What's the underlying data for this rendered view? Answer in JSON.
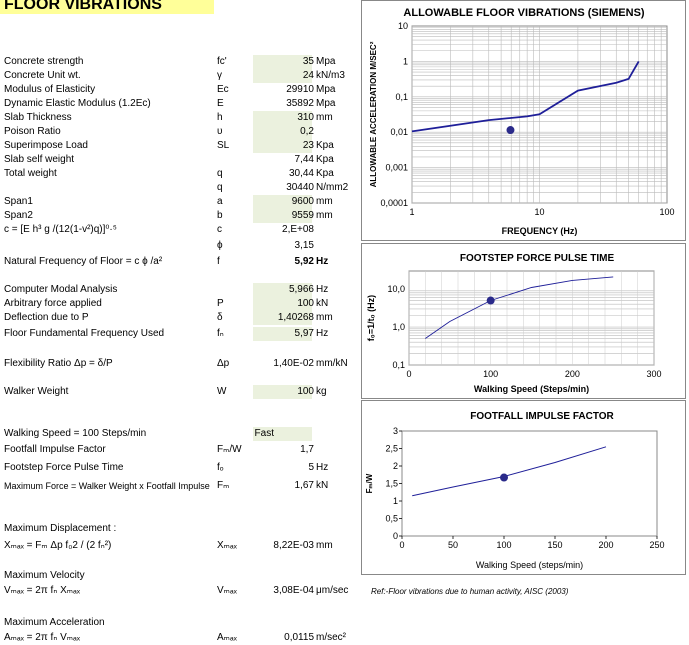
{
  "sheet_title": "FLOOR VIBRATIONS",
  "rows": [
    {
      "label": "Concrete strength",
      "symbol": "fc'",
      "value": "35",
      "unit": "Mpa",
      "shaded": true
    },
    {
      "label": "Concrete Unit wt.",
      "symbol": "γ",
      "value": "24",
      "unit": "kN/m3",
      "shaded": true
    },
    {
      "label": "Modulus of Elasticity",
      "symbol": "Ec",
      "value": "29910",
      "unit": "Mpa",
      "shaded": false
    },
    {
      "label": "Dynamic Elastic Modulus (1.2Ec)",
      "symbol": "E",
      "value": "35892",
      "unit": "Mpa",
      "shaded": false
    },
    {
      "label": "Slab Thickness",
      "symbol": "h",
      "value": "310",
      "unit": "mm",
      "shaded": true
    },
    {
      "label": "Poison Ratio",
      "symbol": "υ",
      "value": "0,2",
      "unit": "",
      "shaded": true
    },
    {
      "label": "Superimpose  Load",
      "symbol": "SL",
      "value": "23",
      "unit": "Kpa",
      "shaded": true
    },
    {
      "label": "Slab self weight",
      "symbol": "",
      "value": "7,44",
      "unit": "Kpa",
      "shaded": false
    },
    {
      "label": "Total weight",
      "symbol": "q",
      "value": "30,44",
      "unit": "Kpa",
      "shaded": false
    },
    {
      "label": "",
      "symbol": "q",
      "value": "30440",
      "unit": "N/mm2",
      "shaded": false
    },
    {
      "label": "Span1",
      "symbol": "a",
      "value": "9600",
      "unit": "mm",
      "shaded": true
    },
    {
      "label": "Span2",
      "symbol": "b",
      "value": "9559",
      "unit": "mm",
      "shaded": true
    },
    {
      "label": "c = [E h³ g /(12(1-v²)q)]⁰·⁵",
      "symbol": "c",
      "value": "2,E+08",
      "unit": "",
      "shaded": false
    },
    {
      "label": "",
      "symbol": "ϕ",
      "value": "3,15",
      "unit": "",
      "shaded": false
    },
    {
      "label": "Natural Frequency of Floor = c ϕ /a²",
      "symbol": "f",
      "value": "5,92",
      "unit": "Hz",
      "shaded": false,
      "bold": true
    },
    {
      "label": "Computer Modal Analysis",
      "symbol": "",
      "value": "5,966",
      "unit": "Hz",
      "shaded": true
    },
    {
      "label": "Arbitrary force applied",
      "symbol": "P",
      "value": "100",
      "unit": "kN",
      "shaded": true
    },
    {
      "label": "Deflection due to P",
      "symbol": "δ",
      "value": "1,40268",
      "unit": "mm",
      "shaded": true
    },
    {
      "label": "Floor Fundamental Frequency Used",
      "symbol": "fₙ",
      "value": "5,97",
      "unit": "Hz",
      "shaded": true
    },
    {
      "label": "Flexibility Ratio Δp = δ/P",
      "symbol": "Δp",
      "value": "1,40E-02",
      "unit": "mm/kN",
      "shaded": false
    },
    {
      "label": "Walker Weight",
      "symbol": "W",
      "value": "100",
      "unit": "kg",
      "shaded": true
    },
    {
      "label": "Walking Speed =  100  Steps/min",
      "symbol": "",
      "value": "Fast",
      "unit": "",
      "shaded": true
    },
    {
      "label": "Footfall Impulse Factor",
      "symbol": "Fₘ/W",
      "value": "1,7",
      "unit": "",
      "shaded": false
    },
    {
      "label": "Footstep Force Pulse Time",
      "symbol": "fₒ",
      "value": "5",
      "unit": "Hz",
      "shaded": false
    },
    {
      "label": "Maximum Force = Walker Weight x Footfall Impulse",
      "symbol": "Fₘ",
      "value": "1,67",
      "unit": "kN",
      "shaded": false
    },
    {
      "label": "Maximum Displacement :",
      "symbol": "",
      "value": "",
      "unit": "",
      "shaded": false
    },
    {
      "label": "Xₘₐₓ = Fₘ Δp f₀2 / (2 fₙ²)",
      "symbol": "Xₘₐₓ",
      "value": "8,22E-03",
      "unit": "mm",
      "shaded": false
    },
    {
      "label": "Maximum Velocity",
      "symbol": "",
      "value": "",
      "unit": "",
      "shaded": false
    },
    {
      "label": "Vₘₐₓ = 2π fₙ Xₘₐₓ",
      "symbol": "Vₘₐₓ",
      "value": "3,08E-04",
      "unit": "μm/sec",
      "shaded": false
    },
    {
      "label": "Maximum Acceleration",
      "symbol": "",
      "value": "",
      "unit": "",
      "shaded": false
    },
    {
      "label": "Aₘₐₓ = 2π fₙ Vₘₐₓ",
      "symbol": "Aₘₐₓ",
      "value": "0,0115",
      "unit": "m/sec²",
      "shaded": false
    }
  ],
  "note": "Ref:-Floor vibrations due to human activity, AISC (2003)",
  "chart_data": [
    {
      "type": "line",
      "title": "ALLOWABLE FLOOR VIBRATIONS (SIEMENS)",
      "xlabel": "FREQUENCY (Hz)",
      "ylabel": "ALLOWABLE ACCELERATION M/SEC²",
      "xscale": "log",
      "yscale": "log",
      "xlim": [
        1,
        100
      ],
      "ylim": [
        0.0001,
        10
      ],
      "xticks": [
        "1",
        "10",
        "100"
      ],
      "yticks": [
        "0,0001",
        "0,001",
        "0,01",
        "0,1",
        "1",
        "10"
      ],
      "series": [
        {
          "x": [
            1,
            4,
            8,
            10,
            20,
            40,
            50,
            60
          ],
          "y": [
            0.0105,
            0.022,
            0.028,
            0.032,
            0.15,
            0.25,
            0.32,
            1.0
          ]
        }
      ],
      "points": [
        {
          "x": 5.92,
          "y": 0.0115
        }
      ],
      "grid": true
    },
    {
      "type": "line",
      "title": "FOOTSTEP  FORCE  PULSE  TIME",
      "xlabel": "Walking Speed (Steps/min)",
      "ylabel": "f₀=1/t₀ (Hz)",
      "yscale": "log",
      "xlim": [
        0,
        300
      ],
      "ylim": [
        0.1,
        30
      ],
      "xticks": [
        "0",
        "100",
        "200",
        "300"
      ],
      "yticks": [
        "0,1",
        "1,0",
        "10,0"
      ],
      "series": [
        {
          "x": [
            20,
            50,
            100,
            150,
            200,
            250
          ],
          "y": [
            0.5,
            1.4,
            5,
            11,
            17,
            21
          ]
        }
      ],
      "points": [
        {
          "x": 100,
          "y": 5
        }
      ],
      "grid": true
    },
    {
      "type": "line",
      "title": "FOOTFALL  IMPULSE  FACTOR",
      "xlabel": "Walking  Speed  (steps/min)",
      "ylabel": "Fₘ/W",
      "xlim": [
        0,
        250
      ],
      "ylim": [
        0,
        3
      ],
      "xticks": [
        "0",
        "50",
        "100",
        "150",
        "200",
        "250"
      ],
      "yticks": [
        "0",
        "0,5",
        "1",
        "1,5",
        "2",
        "2,5",
        "3"
      ],
      "series": [
        {
          "x": [
            10,
            50,
            100,
            150,
            200
          ],
          "y": [
            1.15,
            1.4,
            1.7,
            2.1,
            2.55
          ]
        }
      ],
      "points": [
        {
          "x": 100,
          "y": 1.67
        }
      ],
      "grid": false
    }
  ]
}
